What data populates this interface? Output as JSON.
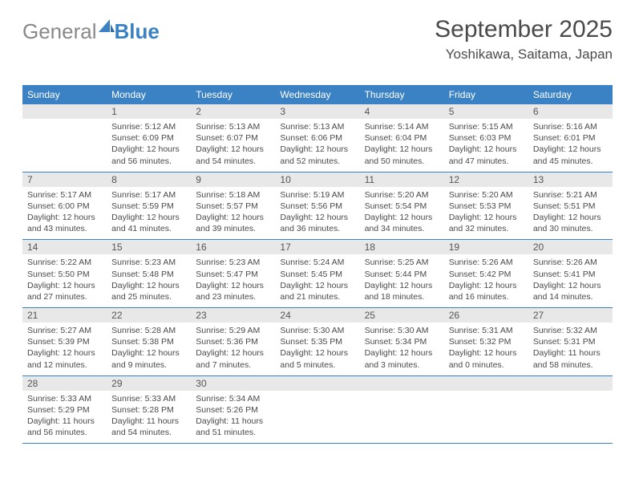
{
  "logo": {
    "textA": "General",
    "textB": "Blue"
  },
  "header": {
    "title": "September 2025",
    "location": "Yoshikawa, Saitama, Japan"
  },
  "colors": {
    "accent": "#3b82c4",
    "header_bg": "#3b82c4",
    "daynum_bg": "#e8e8e8",
    "divider": "#3b82c4",
    "text": "#4a4a4a",
    "logo_gray": "#888888"
  },
  "dayNames": [
    "Sunday",
    "Monday",
    "Tuesday",
    "Wednesday",
    "Thursday",
    "Friday",
    "Saturday"
  ],
  "weeks": [
    [
      {
        "n": "",
        "sunrise": "",
        "sunset": "",
        "daylight": ""
      },
      {
        "n": "1",
        "sunrise": "Sunrise: 5:12 AM",
        "sunset": "Sunset: 6:09 PM",
        "daylight": "Daylight: 12 hours and 56 minutes."
      },
      {
        "n": "2",
        "sunrise": "Sunrise: 5:13 AM",
        "sunset": "Sunset: 6:07 PM",
        "daylight": "Daylight: 12 hours and 54 minutes."
      },
      {
        "n": "3",
        "sunrise": "Sunrise: 5:13 AM",
        "sunset": "Sunset: 6:06 PM",
        "daylight": "Daylight: 12 hours and 52 minutes."
      },
      {
        "n": "4",
        "sunrise": "Sunrise: 5:14 AM",
        "sunset": "Sunset: 6:04 PM",
        "daylight": "Daylight: 12 hours and 50 minutes."
      },
      {
        "n": "5",
        "sunrise": "Sunrise: 5:15 AM",
        "sunset": "Sunset: 6:03 PM",
        "daylight": "Daylight: 12 hours and 47 minutes."
      },
      {
        "n": "6",
        "sunrise": "Sunrise: 5:16 AM",
        "sunset": "Sunset: 6:01 PM",
        "daylight": "Daylight: 12 hours and 45 minutes."
      }
    ],
    [
      {
        "n": "7",
        "sunrise": "Sunrise: 5:17 AM",
        "sunset": "Sunset: 6:00 PM",
        "daylight": "Daylight: 12 hours and 43 minutes."
      },
      {
        "n": "8",
        "sunrise": "Sunrise: 5:17 AM",
        "sunset": "Sunset: 5:59 PM",
        "daylight": "Daylight: 12 hours and 41 minutes."
      },
      {
        "n": "9",
        "sunrise": "Sunrise: 5:18 AM",
        "sunset": "Sunset: 5:57 PM",
        "daylight": "Daylight: 12 hours and 39 minutes."
      },
      {
        "n": "10",
        "sunrise": "Sunrise: 5:19 AM",
        "sunset": "Sunset: 5:56 PM",
        "daylight": "Daylight: 12 hours and 36 minutes."
      },
      {
        "n": "11",
        "sunrise": "Sunrise: 5:20 AM",
        "sunset": "Sunset: 5:54 PM",
        "daylight": "Daylight: 12 hours and 34 minutes."
      },
      {
        "n": "12",
        "sunrise": "Sunrise: 5:20 AM",
        "sunset": "Sunset: 5:53 PM",
        "daylight": "Daylight: 12 hours and 32 minutes."
      },
      {
        "n": "13",
        "sunrise": "Sunrise: 5:21 AM",
        "sunset": "Sunset: 5:51 PM",
        "daylight": "Daylight: 12 hours and 30 minutes."
      }
    ],
    [
      {
        "n": "14",
        "sunrise": "Sunrise: 5:22 AM",
        "sunset": "Sunset: 5:50 PM",
        "daylight": "Daylight: 12 hours and 27 minutes."
      },
      {
        "n": "15",
        "sunrise": "Sunrise: 5:23 AM",
        "sunset": "Sunset: 5:48 PM",
        "daylight": "Daylight: 12 hours and 25 minutes."
      },
      {
        "n": "16",
        "sunrise": "Sunrise: 5:23 AM",
        "sunset": "Sunset: 5:47 PM",
        "daylight": "Daylight: 12 hours and 23 minutes."
      },
      {
        "n": "17",
        "sunrise": "Sunrise: 5:24 AM",
        "sunset": "Sunset: 5:45 PM",
        "daylight": "Daylight: 12 hours and 21 minutes."
      },
      {
        "n": "18",
        "sunrise": "Sunrise: 5:25 AM",
        "sunset": "Sunset: 5:44 PM",
        "daylight": "Daylight: 12 hours and 18 minutes."
      },
      {
        "n": "19",
        "sunrise": "Sunrise: 5:26 AM",
        "sunset": "Sunset: 5:42 PM",
        "daylight": "Daylight: 12 hours and 16 minutes."
      },
      {
        "n": "20",
        "sunrise": "Sunrise: 5:26 AM",
        "sunset": "Sunset: 5:41 PM",
        "daylight": "Daylight: 12 hours and 14 minutes."
      }
    ],
    [
      {
        "n": "21",
        "sunrise": "Sunrise: 5:27 AM",
        "sunset": "Sunset: 5:39 PM",
        "daylight": "Daylight: 12 hours and 12 minutes."
      },
      {
        "n": "22",
        "sunrise": "Sunrise: 5:28 AM",
        "sunset": "Sunset: 5:38 PM",
        "daylight": "Daylight: 12 hours and 9 minutes."
      },
      {
        "n": "23",
        "sunrise": "Sunrise: 5:29 AM",
        "sunset": "Sunset: 5:36 PM",
        "daylight": "Daylight: 12 hours and 7 minutes."
      },
      {
        "n": "24",
        "sunrise": "Sunrise: 5:30 AM",
        "sunset": "Sunset: 5:35 PM",
        "daylight": "Daylight: 12 hours and 5 minutes."
      },
      {
        "n": "25",
        "sunrise": "Sunrise: 5:30 AM",
        "sunset": "Sunset: 5:34 PM",
        "daylight": "Daylight: 12 hours and 3 minutes."
      },
      {
        "n": "26",
        "sunrise": "Sunrise: 5:31 AM",
        "sunset": "Sunset: 5:32 PM",
        "daylight": "Daylight: 12 hours and 0 minutes."
      },
      {
        "n": "27",
        "sunrise": "Sunrise: 5:32 AM",
        "sunset": "Sunset: 5:31 PM",
        "daylight": "Daylight: 11 hours and 58 minutes."
      }
    ],
    [
      {
        "n": "28",
        "sunrise": "Sunrise: 5:33 AM",
        "sunset": "Sunset: 5:29 PM",
        "daylight": "Daylight: 11 hours and 56 minutes."
      },
      {
        "n": "29",
        "sunrise": "Sunrise: 5:33 AM",
        "sunset": "Sunset: 5:28 PM",
        "daylight": "Daylight: 11 hours and 54 minutes."
      },
      {
        "n": "30",
        "sunrise": "Sunrise: 5:34 AM",
        "sunset": "Sunset: 5:26 PM",
        "daylight": "Daylight: 11 hours and 51 minutes."
      },
      {
        "n": "",
        "sunrise": "",
        "sunset": "",
        "daylight": ""
      },
      {
        "n": "",
        "sunrise": "",
        "sunset": "",
        "daylight": ""
      },
      {
        "n": "",
        "sunrise": "",
        "sunset": "",
        "daylight": ""
      },
      {
        "n": "",
        "sunrise": "",
        "sunset": "",
        "daylight": ""
      }
    ]
  ]
}
